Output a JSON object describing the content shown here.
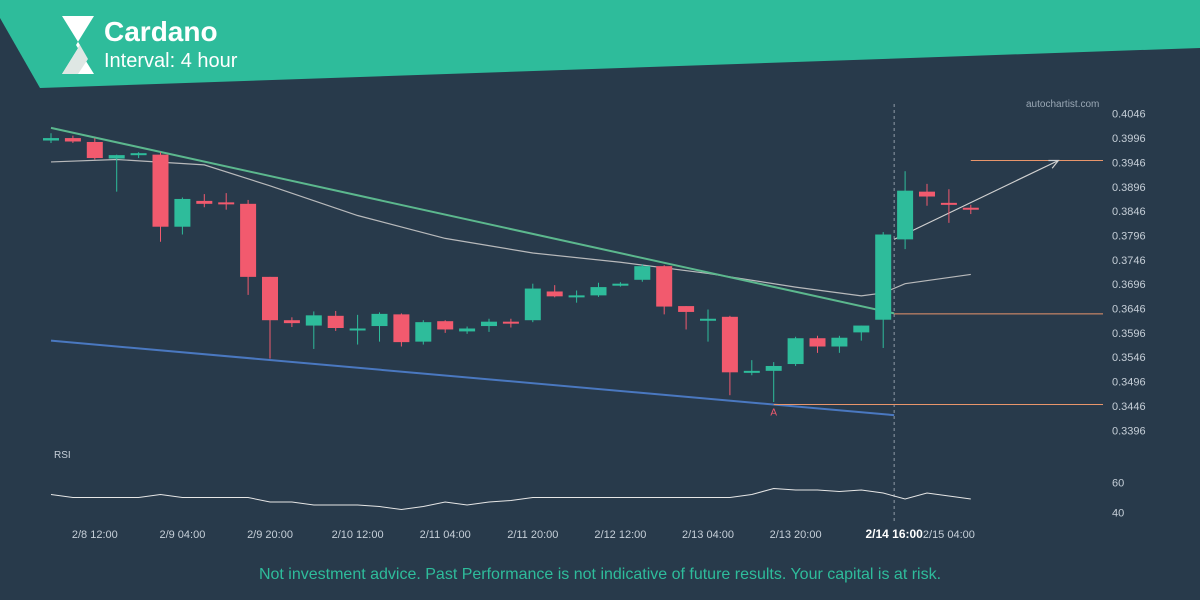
{
  "header": {
    "title": "Cardano",
    "subtitle": "Interval: 4 hour",
    "brand_color": "#2ebc9b",
    "logo_icon": "autochartist-logo-icon"
  },
  "watermark": "autochartist.com",
  "disclaimer": "Not investment advice. Past Performance is not indicative of future results. Your capital is at risk.",
  "colors": {
    "background": "#283a4b",
    "bull": "#2ebc9b",
    "bear": "#f25a6e",
    "support_line": "#4a78c0",
    "resistance_line": "#5cb88e",
    "level_line": "#e8956b",
    "moving_average": "#c8c8c8",
    "rsi_line": "#e6e6e6",
    "axis_text": "#c6cfd8"
  },
  "chart_data": [
    {
      "type": "candlestick",
      "price_axis": {
        "ticks": [
          "0.4046",
          "0.3996",
          "0.3946",
          "0.3896",
          "0.3846",
          "0.3796",
          "0.3746",
          "0.3696",
          "0.3646",
          "0.3596",
          "0.3546",
          "0.3496",
          "0.3446",
          "0.3396"
        ],
        "range": [
          0.3376,
          0.4066
        ]
      },
      "time_axis": {
        "labels": [
          "2/8 12:00",
          "2/9 04:00",
          "2/9 20:00",
          "2/10 12:00",
          "2/11 04:00",
          "2/11 20:00",
          "2/12 12:00",
          "2/13 04:00",
          "2/13 20:00",
          "2/14 16:00",
          "2/15 04:00"
        ],
        "label_index": [
          2,
          6,
          10,
          14,
          18,
          22,
          26,
          30,
          34,
          38.5,
          41
        ],
        "highlight": "2/14 16:00",
        "highlight_index": 38.5
      },
      "candles": [
        {
          "o": 0.3991,
          "h": 0.4006,
          "l": 0.3986,
          "c": 0.3996
        },
        {
          "o": 0.3996,
          "h": 0.4001,
          "l": 0.3986,
          "c": 0.3989
        },
        {
          "o": 0.3988,
          "h": 0.3996,
          "l": 0.3952,
          "c": 0.3955
        },
        {
          "o": 0.3954,
          "h": 0.3962,
          "l": 0.3886,
          "c": 0.3961
        },
        {
          "o": 0.3962,
          "h": 0.3967,
          "l": 0.3955,
          "c": 0.3965
        },
        {
          "o": 0.3962,
          "h": 0.3967,
          "l": 0.3783,
          "c": 0.3814
        },
        {
          "o": 0.3814,
          "h": 0.3874,
          "l": 0.3798,
          "c": 0.3871
        },
        {
          "o": 0.3867,
          "h": 0.3881,
          "l": 0.3854,
          "c": 0.3861
        },
        {
          "o": 0.3864,
          "h": 0.3883,
          "l": 0.3849,
          "c": 0.3863
        },
        {
          "o": 0.3861,
          "h": 0.3869,
          "l": 0.3674,
          "c": 0.3711
        },
        {
          "o": 0.3711,
          "h": 0.3711,
          "l": 0.3543,
          "c": 0.3622
        },
        {
          "o": 0.3622,
          "h": 0.3628,
          "l": 0.3608,
          "c": 0.3616
        },
        {
          "o": 0.3611,
          "h": 0.364,
          "l": 0.3563,
          "c": 0.3632
        },
        {
          "o": 0.3631,
          "h": 0.3641,
          "l": 0.36,
          "c": 0.3606
        },
        {
          "o": 0.3603,
          "h": 0.3633,
          "l": 0.3572,
          "c": 0.3605
        },
        {
          "o": 0.361,
          "h": 0.3638,
          "l": 0.3578,
          "c": 0.3635
        },
        {
          "o": 0.3634,
          "h": 0.3636,
          "l": 0.3568,
          "c": 0.3577
        },
        {
          "o": 0.3578,
          "h": 0.3622,
          "l": 0.3572,
          "c": 0.3618
        },
        {
          "o": 0.362,
          "h": 0.3622,
          "l": 0.3596,
          "c": 0.3603
        },
        {
          "o": 0.3599,
          "h": 0.3609,
          "l": 0.3594,
          "c": 0.3605
        },
        {
          "o": 0.361,
          "h": 0.3625,
          "l": 0.3598,
          "c": 0.3619
        },
        {
          "o": 0.3619,
          "h": 0.3625,
          "l": 0.3607,
          "c": 0.3617
        },
        {
          "o": 0.3622,
          "h": 0.3697,
          "l": 0.3618,
          "c": 0.3687
        },
        {
          "o": 0.3681,
          "h": 0.3694,
          "l": 0.3669,
          "c": 0.3671
        },
        {
          "o": 0.3672,
          "h": 0.3683,
          "l": 0.3658,
          "c": 0.3673
        },
        {
          "o": 0.3673,
          "h": 0.3699,
          "l": 0.367,
          "c": 0.369
        },
        {
          "o": 0.3693,
          "h": 0.37,
          "l": 0.3691,
          "c": 0.3697
        },
        {
          "o": 0.3705,
          "h": 0.3737,
          "l": 0.3701,
          "c": 0.3733
        },
        {
          "o": 0.3733,
          "h": 0.3735,
          "l": 0.3634,
          "c": 0.365
        },
        {
          "o": 0.3651,
          "h": 0.3651,
          "l": 0.3603,
          "c": 0.3639
        },
        {
          "o": 0.3621,
          "h": 0.3644,
          "l": 0.3578,
          "c": 0.3625
        },
        {
          "o": 0.3629,
          "h": 0.3631,
          "l": 0.3468,
          "c": 0.3515
        },
        {
          "o": 0.3514,
          "h": 0.354,
          "l": 0.3509,
          "c": 0.3518
        },
        {
          "o": 0.3518,
          "h": 0.3536,
          "l": 0.3454,
          "c": 0.3528
        },
        {
          "o": 0.3532,
          "h": 0.3588,
          "l": 0.3528,
          "c": 0.3585
        },
        {
          "o": 0.3585,
          "h": 0.359,
          "l": 0.3555,
          "c": 0.3568
        },
        {
          "o": 0.3568,
          "h": 0.359,
          "l": 0.3555,
          "c": 0.3586
        },
        {
          "o": 0.3597,
          "h": 0.3611,
          "l": 0.358,
          "c": 0.3611
        },
        {
          "o": 0.3623,
          "h": 0.3803,
          "l": 0.3565,
          "c": 0.3798
        },
        {
          "o": 0.3788,
          "h": 0.3928,
          "l": 0.3768,
          "c": 0.3888
        },
        {
          "o": 0.3886,
          "h": 0.3902,
          "l": 0.3857,
          "c": 0.3876
        },
        {
          "o": 0.3863,
          "h": 0.3891,
          "l": 0.3822,
          "c": 0.386
        },
        {
          "o": 0.3853,
          "h": 0.3859,
          "l": 0.384,
          "c": 0.3849
        }
      ],
      "moving_average": [
        {
          "i": 0,
          "v": 0.3947
        },
        {
          "i": 3,
          "v": 0.3952
        },
        {
          "i": 7,
          "v": 0.3941
        },
        {
          "i": 10,
          "v": 0.3898
        },
        {
          "i": 14,
          "v": 0.3837
        },
        {
          "i": 18,
          "v": 0.379
        },
        {
          "i": 22,
          "v": 0.376
        },
        {
          "i": 26,
          "v": 0.3741
        },
        {
          "i": 30,
          "v": 0.3718
        },
        {
          "i": 34,
          "v": 0.369
        },
        {
          "i": 37,
          "v": 0.3672
        },
        {
          "i": 38,
          "v": 0.3678
        },
        {
          "i": 39,
          "v": 0.3697
        },
        {
          "i": 42,
          "v": 0.3716
        }
      ],
      "trend_lines": [
        {
          "name": "resistance",
          "color_key": "resistance_line",
          "from": {
            "i": 0,
            "v": 0.4017
          },
          "to": {
            "i": 38.5,
            "v": 0.3636
          }
        },
        {
          "name": "support",
          "color_key": "support_line",
          "from": {
            "i": 0,
            "v": 0.358
          },
          "to": {
            "i": 38.5,
            "v": 0.3427
          }
        }
      ],
      "levels": [
        {
          "value": 0.3635,
          "from_i": 38.5
        },
        {
          "value": 0.3449,
          "from_i": 33
        }
      ],
      "forecast": {
        "level": 0.395,
        "level_from_i": 42,
        "arrow_from": {
          "i": 38.5,
          "v": 0.3788
        },
        "arrow_to": {
          "i": 46,
          "v": 0.395
        }
      },
      "point_label": {
        "text": "A",
        "i": 33,
        "v": 0.3426
      },
      "breakout_index": 38.5
    },
    {
      "type": "line",
      "title": "RSI",
      "y_ticks": [
        "60",
        "40"
      ],
      "ylim": [
        35,
        75
      ],
      "values": [
        52,
        50,
        50,
        50,
        50,
        52,
        50,
        50,
        50,
        50,
        47,
        47,
        45,
        45,
        45,
        44,
        42,
        44,
        47,
        45,
        47,
        48,
        50,
        50,
        50,
        50,
        50,
        50,
        50,
        50,
        50,
        50,
        52,
        56,
        55,
        55,
        54,
        55,
        53,
        49,
        53,
        51,
        49
      ]
    }
  ]
}
